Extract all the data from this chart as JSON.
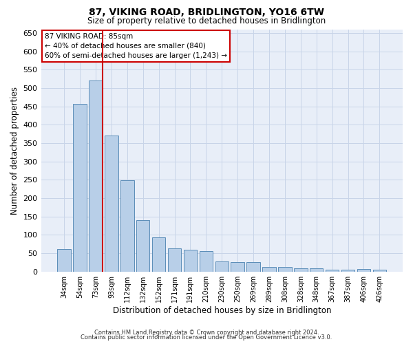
{
  "title": "87, VIKING ROAD, BRIDLINGTON, YO16 6TW",
  "subtitle": "Size of property relative to detached houses in Bridlington",
  "xlabel": "Distribution of detached houses by size in Bridlington",
  "ylabel": "Number of detached properties",
  "footnote1": "Contains HM Land Registry data © Crown copyright and database right 2024.",
  "footnote2": "Contains public sector information licensed under the Open Government Licence v3.0.",
  "annotation_title": "87 VIKING ROAD: 85sqm",
  "annotation_line1": "← 40% of detached houses are smaller (840)",
  "annotation_line2": "60% of semi-detached houses are larger (1,243) →",
  "property_line_index": 2,
  "categories": [
    "34sqm",
    "54sqm",
    "73sqm",
    "93sqm",
    "112sqm",
    "132sqm",
    "152sqm",
    "171sqm",
    "191sqm",
    "210sqm",
    "230sqm",
    "250sqm",
    "269sqm",
    "289sqm",
    "308sqm",
    "328sqm",
    "348sqm",
    "367sqm",
    "387sqm",
    "406sqm",
    "426sqm"
  ],
  "values": [
    62,
    457,
    520,
    370,
    248,
    140,
    93,
    63,
    60,
    56,
    27,
    26,
    26,
    12,
    12,
    8,
    8,
    5,
    5,
    7,
    5
  ],
  "bar_color": "#b8cfe8",
  "bar_edge_color": "#5b8db8",
  "property_line_color": "#cc0000",
  "annotation_box_edgecolor": "#cc0000",
  "grid_color": "#c8d4e8",
  "background_color": "#e8eef8",
  "ylim": [
    0,
    660
  ],
  "yticks": [
    0,
    50,
    100,
    150,
    200,
    250,
    300,
    350,
    400,
    450,
    500,
    550,
    600,
    650
  ]
}
